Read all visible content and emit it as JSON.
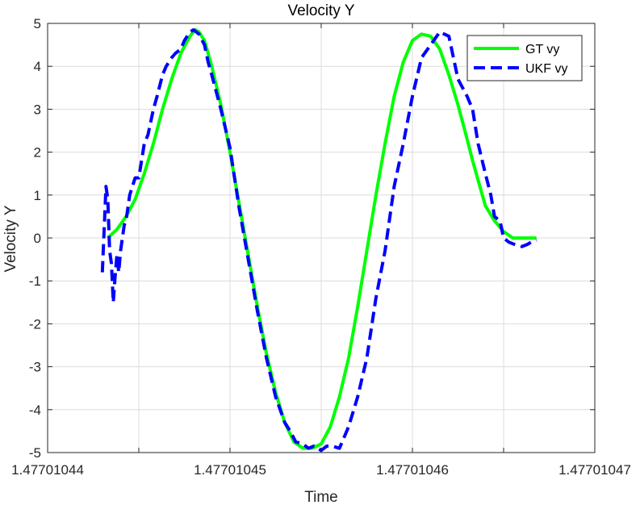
{
  "chart_data": {
    "type": "line",
    "title": "Velocity Y",
    "xlabel": "Time",
    "ylabel": "Velocity Y",
    "xlim": [
      1.47701044,
      1.47701047
    ],
    "ylim": [
      -5,
      5
    ],
    "x_tick_labels": [
      "1.47701044",
      "1.47701045",
      "1.47701046",
      "1.47701047"
    ],
    "y_ticks": [
      -5,
      -4,
      -3,
      -2,
      -1,
      0,
      1,
      2,
      3,
      4,
      5
    ],
    "grid": true,
    "legend_position": "top-right",
    "series": [
      {
        "name": "GT vy",
        "color": "#00ff00",
        "style": "solid",
        "x": [
          1.4770104433,
          1.4770104438,
          1.4770104443,
          1.4770104448,
          1.4770104453,
          1.4770104458,
          1.4770104463,
          1.4770104468,
          1.4770104473,
          1.4770104478,
          1.4770104481,
          1.4770104483,
          1.4770104486,
          1.477010449,
          1.4770104495,
          1.47701045,
          1.4770104505,
          1.477010451,
          1.4770104515,
          1.477010452,
          1.4770104525,
          1.477010453,
          1.4770104535,
          1.477010454,
          1.4770104545,
          1.477010455,
          1.4770104555,
          1.477010456,
          1.4770104565,
          1.477010457,
          1.4770104575,
          1.477010458,
          1.4770104585,
          1.477010459,
          1.4770104595,
          1.47701046,
          1.4770104605,
          1.477010461,
          1.4770104615,
          1.477010462,
          1.4770104625,
          1.477010463,
          1.4770104633,
          1.4770104637,
          1.477010464,
          1.4770104645,
          1.477010465,
          1.4770104655,
          1.477010466,
          1.4770104665,
          1.4770104668
        ],
        "y": [
          0.0,
          0.2,
          0.5,
          0.9,
          1.5,
          2.2,
          3.0,
          3.7,
          4.3,
          4.7,
          4.85,
          4.8,
          4.6,
          4.0,
          3.1,
          2.0,
          0.8,
          -0.4,
          -1.6,
          -2.7,
          -3.6,
          -4.3,
          -4.75,
          -4.9,
          -4.9,
          -4.8,
          -4.4,
          -3.7,
          -2.8,
          -1.6,
          -0.3,
          1.0,
          2.2,
          3.3,
          4.1,
          4.6,
          4.75,
          4.7,
          4.4,
          3.8,
          3.1,
          2.3,
          1.8,
          1.2,
          0.75,
          0.4,
          0.15,
          0.0,
          0.0,
          0.0,
          0.0
        ]
      },
      {
        "name": "UKF vy",
        "color": "#0000ff",
        "style": "dashed",
        "x": [
          1.477010443,
          1.4770104431,
          1.4770104432,
          1.4770104433,
          1.4770104434,
          1.4770104435,
          1.4770104436,
          1.4770104437,
          1.4770104438,
          1.4770104439,
          1.477010444,
          1.4770104442,
          1.4770104443,
          1.4770104445,
          1.4770104448,
          1.477010445,
          1.4770104453,
          1.4770104455,
          1.4770104458,
          1.477010446,
          1.4770104463,
          1.4770104465,
          1.4770104468,
          1.477010447,
          1.4770104473,
          1.4770104475,
          1.4770104478,
          1.477010448,
          1.4770104483,
          1.4770104486,
          1.4770104488,
          1.477010449,
          1.4770104495,
          1.47701045,
          1.4770104505,
          1.477010451,
          1.4770104515,
          1.477010452,
          1.4770104525,
          1.477010453,
          1.4770104533,
          1.4770104536,
          1.477010454,
          1.4770104543,
          1.4770104546,
          1.477010455,
          1.4770104553,
          1.4770104556,
          1.477010456,
          1.4770104565,
          1.477010457,
          1.4770104575,
          1.477010458,
          1.4770104585,
          1.477010459,
          1.4770104595,
          1.47701046,
          1.4770104605,
          1.477010461,
          1.4770104615,
          1.477010462,
          1.4770104625,
          1.477010463,
          1.4770104633,
          1.4770104636,
          1.477010464,
          1.4770104643,
          1.4770104645,
          1.4770104648,
          1.477010465,
          1.4770104653,
          1.4770104656,
          1.477010466,
          1.4770104663,
          1.4770104665,
          1.4770104668
        ],
        "y": [
          -0.8,
          0.2,
          1.2,
          0.9,
          -0.3,
          -0.6,
          -1.5,
          -0.9,
          -0.4,
          -0.8,
          -0.3,
          0.3,
          0.4,
          1.0,
          1.4,
          1.4,
          2.2,
          2.4,
          3.0,
          3.3,
          3.8,
          4.0,
          4.2,
          4.3,
          4.4,
          4.6,
          4.8,
          4.85,
          4.75,
          4.5,
          4.1,
          3.8,
          3.0,
          2.1,
          0.7,
          -0.5,
          -1.7,
          -2.8,
          -3.7,
          -4.3,
          -4.5,
          -4.75,
          -4.8,
          -4.9,
          -4.85,
          -4.95,
          -4.85,
          -4.85,
          -4.9,
          -4.4,
          -3.7,
          -2.8,
          -1.4,
          -0.3,
          1.2,
          2.2,
          3.3,
          4.2,
          4.5,
          4.8,
          4.7,
          3.7,
          3.3,
          3.0,
          2.2,
          1.5,
          1.0,
          0.5,
          0.4,
          0.0,
          -0.1,
          -0.15,
          -0.2,
          -0.15,
          -0.1,
          -0.05
        ]
      }
    ]
  }
}
